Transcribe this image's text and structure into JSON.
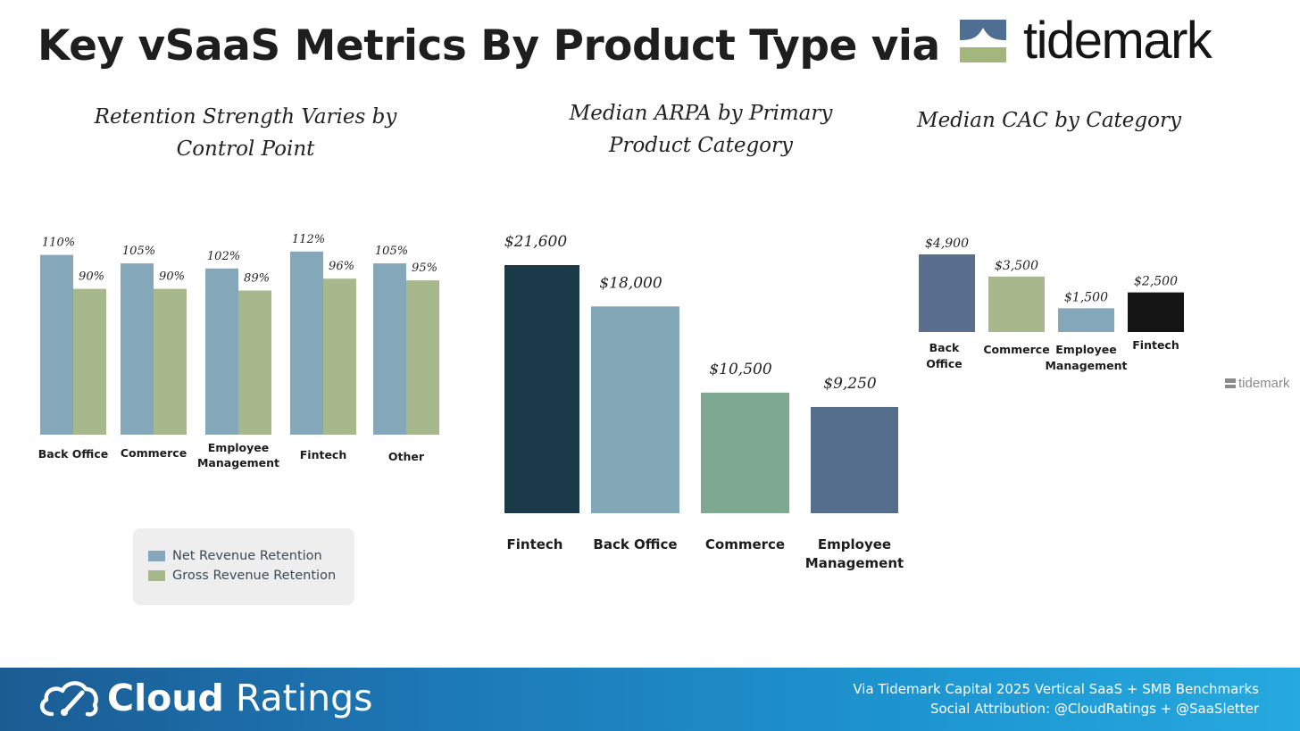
{
  "header": {
    "title": "Key vSaaS Metrics By Product Type via",
    "logo_text": "tidemark"
  },
  "colors": {
    "nrr": "#84a8ba",
    "grr": "#a8b88d",
    "fintech_dark": "#1a3a4a",
    "back_office_light": "#82a8b8",
    "commerce_green": "#7fa890",
    "employee_blue": "#566e8d",
    "cac_back_office": "#5a6e8e",
    "cac_commerce": "#a8b88d",
    "cac_employee": "#84a8ba",
    "cac_fintech": "#141414",
    "footer_blue": "#1d86c4"
  },
  "chart_data": [
    {
      "type": "bar",
      "title": "Retention Strength Varies by Control Point",
      "categories": [
        "Back Office",
        "Commerce",
        "Employee Management",
        "Fintech",
        "Other"
      ],
      "series": [
        {
          "name": "Net Revenue Retention",
          "values": [
            110,
            105,
            102,
            112,
            105
          ],
          "labels": [
            "110%",
            "105%",
            "102%",
            "112%",
            "105%"
          ]
        },
        {
          "name": "Gross Revenue Retention",
          "values": [
            90,
            90,
            89,
            96,
            95
          ],
          "labels": [
            "90%",
            "90%",
            "89%",
            "96%",
            "95%"
          ]
        }
      ],
      "legend_position": "bottom"
    },
    {
      "type": "bar",
      "title": "Median ARPA by Primary Product Category",
      "categories": [
        "Fintech",
        "Back Office",
        "Commerce",
        "Employee Management"
      ],
      "values": [
        21600,
        18000,
        10500,
        9250
      ],
      "labels": [
        "$21,600",
        "$18,000",
        "$10,500",
        "$9,250"
      ]
    },
    {
      "type": "bar",
      "title": "Median CAC by Category",
      "categories": [
        "Back Office",
        "Commerce",
        "Employee Management",
        "Fintech"
      ],
      "values": [
        4900,
        3500,
        1500,
        2500
      ],
      "labels": [
        "$4,900",
        "$3,500",
        "$1,500",
        "$2,500"
      ]
    }
  ],
  "watermark": "tidemark",
  "footer": {
    "brand_bold": "Cloud",
    "brand_light": "Ratings",
    "line1": "Via Tidemark Capital 2025 Vertical SaaS + SMB Benchmarks",
    "line2": "Social Attribution: @CloudRatings + @SaaSletter"
  }
}
